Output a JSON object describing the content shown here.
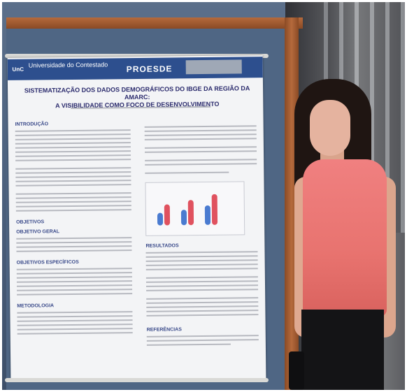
{
  "poster": {
    "institution": "Universidade do Contestado",
    "program": "PROESDE",
    "title_line1": "SISTEMATIZAÇÃO DOS DADOS DEMOGRÁFICOS DO IBGE DA REGIÃO DA AMARC:",
    "title_line2": "A VISIBILIDADE COMO FOCO DE DESENVOLVIMENTO",
    "sections": {
      "intro": "INTRODUÇÃO",
      "objectives": "OBJETIVOS",
      "general_objective": "OBJETIVO GERAL",
      "specific_objectives": "OBJETIVOS ESPECÍFICOS",
      "methodology": "METODOLOGIA",
      "results": "RESULTADOS",
      "references": "REFERÊNCIAS"
    }
  }
}
